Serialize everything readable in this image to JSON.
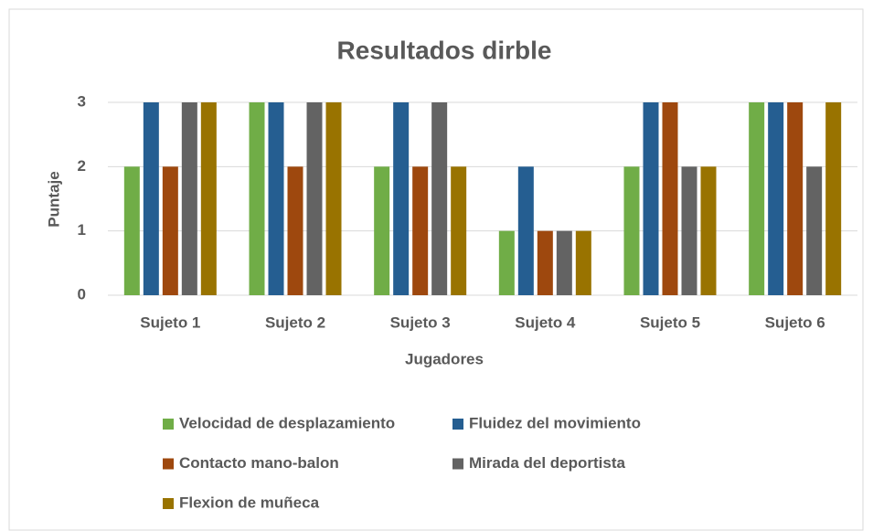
{
  "chart_data": {
    "type": "bar",
    "title": "Resultados dirble",
    "x_label": "Jugadores",
    "y_label": "Puntaje",
    "categories": [
      "Sujeto 1",
      "Sujeto 2",
      "Sujeto 3",
      "Sujeto 4",
      "Sujeto 5",
      "Sujeto 6"
    ],
    "series": [
      {
        "name": "Velocidad de desplazamiento",
        "color": "#70ad47",
        "values": [
          2,
          3,
          2,
          1,
          2,
          3
        ]
      },
      {
        "name": "Fluidez del movimiento",
        "color": "#255e91",
        "values": [
          3,
          3,
          3,
          2,
          3,
          3
        ]
      },
      {
        "name": "Contacto mano-balon",
        "color": "#9e480e",
        "values": [
          2,
          2,
          2,
          1,
          3,
          3
        ]
      },
      {
        "name": "Mirada del deportista",
        "color": "#636363",
        "values": [
          3,
          3,
          3,
          1,
          2,
          2
        ]
      },
      {
        "name": "Flexion de muñeca",
        "color": "#997300",
        "values": [
          3,
          3,
          2,
          1,
          2,
          3
        ]
      }
    ],
    "ylim": [
      0,
      3
    ],
    "yticks": [
      0,
      1,
      2,
      3
    ],
    "grid": true,
    "legend": "bottom"
  }
}
